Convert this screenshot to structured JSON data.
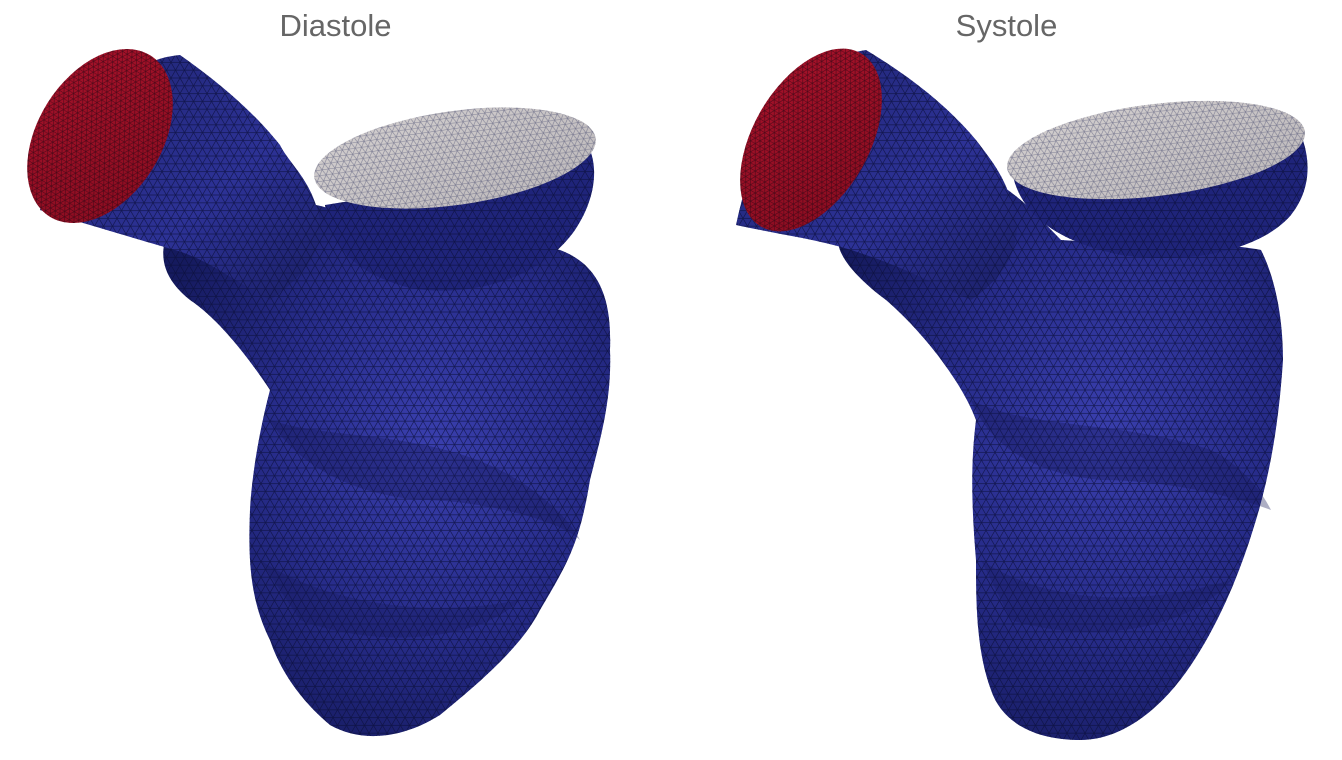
{
  "panels": [
    {
      "title": "Diastole"
    },
    {
      "title": "Systole"
    }
  ],
  "colors": {
    "background": "#ffffff",
    "title_text": "#666666",
    "ventricle_surface": "#2a2f8f",
    "ventricle_dark": "#13185a",
    "mesh_lines": "#0b0e3a",
    "inlet_cap": "#9c1024",
    "outlet_cap": "#c9c5c5"
  },
  "icons": {
    "model": "heart-ventricle-mesh"
  }
}
